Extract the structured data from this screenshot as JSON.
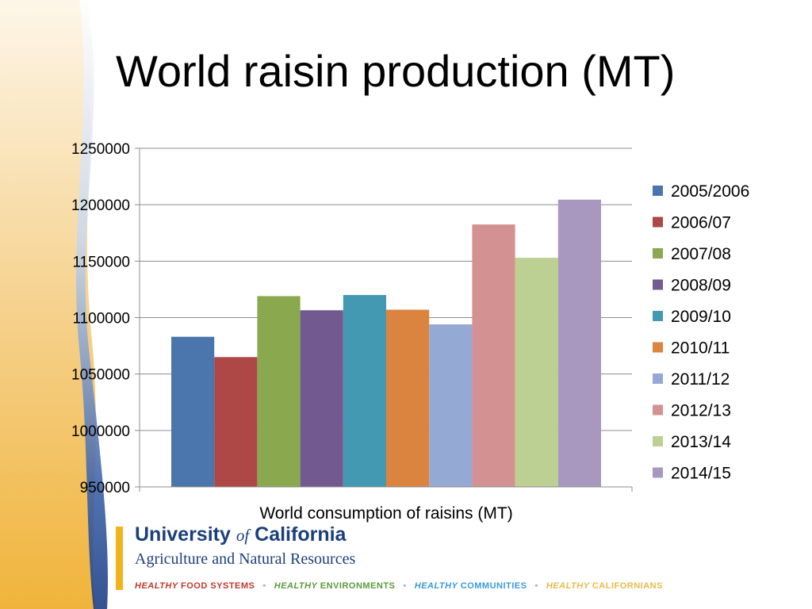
{
  "slide": {
    "title": "World raisin production (MT)"
  },
  "chart_data": {
    "type": "bar",
    "categories": [
      "World consumption of raisins (MT)"
    ],
    "series": [
      {
        "name": "2005/2006",
        "values": [
          1083000
        ],
        "color": "#4a76ad"
      },
      {
        "name": "2006/07",
        "values": [
          1065000
        ],
        "color": "#ad4847"
      },
      {
        "name": "2007/08",
        "values": [
          1119000
        ],
        "color": "#8aa84d"
      },
      {
        "name": "2008/09",
        "values": [
          1106500
        ],
        "color": "#725a91"
      },
      {
        "name": "2009/10",
        "values": [
          1120000
        ],
        "color": "#4299b1"
      },
      {
        "name": "2010/11",
        "values": [
          1107000
        ],
        "color": "#db8440"
      },
      {
        "name": "2011/12",
        "values": [
          1094000
        ],
        "color": "#94a9d3"
      },
      {
        "name": "2012/13",
        "values": [
          1182500
        ],
        "color": "#d39191"
      },
      {
        "name": "2013/14",
        "values": [
          1153000
        ],
        "color": "#bcd094"
      },
      {
        "name": "2014/15",
        "values": [
          1204500
        ],
        "color": "#a898bf"
      }
    ],
    "yticks": [
      "1250000",
      "1200000",
      "1150000",
      "1100000",
      "1050000",
      "1000000",
      "950000"
    ],
    "ylim": [
      950000,
      1250000
    ],
    "xlabel": "World consumption of raisins (MT)",
    "ylabel": "",
    "grid": true,
    "legend": "right"
  },
  "footer": {
    "university": "University",
    "of": "of",
    "california": "California",
    "division": "Agriculture and Natural Resources",
    "tagline": [
      {
        "prefix": "HEALTHY",
        "word": "FOOD SYSTEMS",
        "color": "#c0392b"
      },
      {
        "prefix": "HEALTHY",
        "word": "ENVIRONMENTS",
        "color": "#5a9a3a"
      },
      {
        "prefix": "HEALTHY",
        "word": "COMMUNITIES",
        "color": "#3a9ad9"
      },
      {
        "prefix": "HEALTHY",
        "word": "CALIFORNIANS",
        "color": "#e8b94a"
      }
    ]
  }
}
